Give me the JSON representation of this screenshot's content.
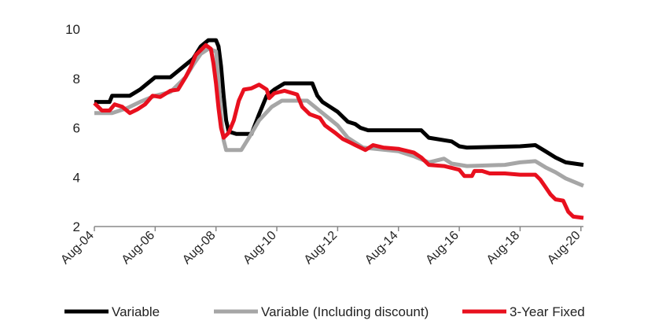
{
  "chart_data": {
    "type": "line",
    "title": "",
    "xlabel": "",
    "ylabel": "",
    "xlim": [
      "2004-08",
      "2020-09"
    ],
    "ylim": [
      2,
      10
    ],
    "grid": false,
    "legend": "bottom",
    "y_ticks": [
      2,
      4,
      6,
      8,
      10
    ],
    "y_tick_labels": [
      "2",
      "4",
      "6",
      "8",
      "10"
    ],
    "x_tick_labels": [
      "Aug-04",
      "Aug-06",
      "Aug-08",
      "Aug-10",
      "Aug-12",
      "Aug-14",
      "Aug-16",
      "Aug-18",
      "Aug-20"
    ],
    "x_tick_dates": [
      "2004-08",
      "2006-08",
      "2008-08",
      "2010-08",
      "2012-08",
      "2014-08",
      "2016-08",
      "2018-08",
      "2020-08"
    ],
    "series": [
      {
        "name": "Variable",
        "color": "#000000",
        "points": [
          [
            "2004-08",
            7.05
          ],
          [
            "2005-02",
            7.05
          ],
          [
            "2005-03",
            7.3
          ],
          [
            "2005-10",
            7.3
          ],
          [
            "2006-02",
            7.55
          ],
          [
            "2006-05",
            7.8
          ],
          [
            "2006-08",
            8.05
          ],
          [
            "2007-02",
            8.05
          ],
          [
            "2007-05",
            8.3
          ],
          [
            "2007-08",
            8.55
          ],
          [
            "2007-11",
            8.8
          ],
          [
            "2008-02",
            9.3
          ],
          [
            "2008-05",
            9.55
          ],
          [
            "2008-08",
            9.55
          ],
          [
            "2008-09",
            9.3
          ],
          [
            "2008-10",
            8.5
          ],
          [
            "2008-11",
            7.3
          ],
          [
            "2008-12",
            6.3
          ],
          [
            "2009-01",
            5.85
          ],
          [
            "2009-04",
            5.75
          ],
          [
            "2009-10",
            5.75
          ],
          [
            "2010-01",
            6.55
          ],
          [
            "2010-04",
            7.3
          ],
          [
            "2010-07",
            7.55
          ],
          [
            "2010-11",
            7.8
          ],
          [
            "2011-10",
            7.8
          ],
          [
            "2011-11",
            7.55
          ],
          [
            "2011-12",
            7.3
          ],
          [
            "2012-02",
            7.05
          ],
          [
            "2012-05",
            6.85
          ],
          [
            "2012-08",
            6.65
          ],
          [
            "2012-10",
            6.45
          ],
          [
            "2012-12",
            6.25
          ],
          [
            "2013-03",
            6.15
          ],
          [
            "2013-05",
            6.0
          ],
          [
            "2013-08",
            5.9
          ],
          [
            "2015-05",
            5.9
          ],
          [
            "2015-08",
            5.6
          ],
          [
            "2016-05",
            5.45
          ],
          [
            "2016-08",
            5.25
          ],
          [
            "2016-11",
            5.2
          ],
          [
            "2018-08",
            5.25
          ],
          [
            "2019-02",
            5.3
          ],
          [
            "2019-06",
            5.05
          ],
          [
            "2019-10",
            4.8
          ],
          [
            "2020-02",
            4.6
          ],
          [
            "2020-09",
            4.5
          ]
        ]
      },
      {
        "name": "Variable (Including discount)",
        "color": "#a6a6a6",
        "points": [
          [
            "2004-08",
            6.6
          ],
          [
            "2005-03",
            6.6
          ],
          [
            "2005-09",
            6.8
          ],
          [
            "2006-02",
            7.05
          ],
          [
            "2006-08",
            7.3
          ],
          [
            "2007-02",
            7.45
          ],
          [
            "2007-08",
            8.05
          ],
          [
            "2007-11",
            8.55
          ],
          [
            "2008-02",
            9.0
          ],
          [
            "2008-05",
            9.2
          ],
          [
            "2008-08",
            9.1
          ],
          [
            "2008-09",
            8.0
          ],
          [
            "2008-10",
            6.5
          ],
          [
            "2008-11",
            5.5
          ],
          [
            "2008-12",
            5.1
          ],
          [
            "2009-06",
            5.1
          ],
          [
            "2009-09",
            5.6
          ],
          [
            "2010-01",
            6.3
          ],
          [
            "2010-06",
            6.85
          ],
          [
            "2010-10",
            7.1
          ],
          [
            "2011-04",
            7.1
          ],
          [
            "2011-08",
            7.1
          ],
          [
            "2011-11",
            6.85
          ],
          [
            "2012-02",
            6.6
          ],
          [
            "2012-05",
            6.35
          ],
          [
            "2012-08",
            6.1
          ],
          [
            "2012-10",
            5.85
          ],
          [
            "2012-12",
            5.6
          ],
          [
            "2013-03",
            5.4
          ],
          [
            "2013-06",
            5.2
          ],
          [
            "2014-08",
            5.05
          ],
          [
            "2015-02",
            4.85
          ],
          [
            "2015-08",
            4.6
          ],
          [
            "2016-02",
            4.75
          ],
          [
            "2016-05",
            4.55
          ],
          [
            "2016-11",
            4.45
          ],
          [
            "2018-02",
            4.5
          ],
          [
            "2018-08",
            4.6
          ],
          [
            "2019-02",
            4.65
          ],
          [
            "2019-06",
            4.4
          ],
          [
            "2019-10",
            4.2
          ],
          [
            "2020-02",
            3.95
          ],
          [
            "2020-09",
            3.65
          ]
        ]
      },
      {
        "name": "3-Year Fixed",
        "color": "#e8101e",
        "points": [
          [
            "2004-08",
            7.0
          ],
          [
            "2004-11",
            6.7
          ],
          [
            "2005-02",
            6.7
          ],
          [
            "2005-04",
            6.95
          ],
          [
            "2005-07",
            6.85
          ],
          [
            "2005-10",
            6.6
          ],
          [
            "2006-01",
            6.75
          ],
          [
            "2006-04",
            6.95
          ],
          [
            "2006-07",
            7.3
          ],
          [
            "2006-10",
            7.25
          ],
          [
            "2007-02",
            7.5
          ],
          [
            "2007-05",
            7.55
          ],
          [
            "2007-08",
            8.05
          ],
          [
            "2007-10",
            8.45
          ],
          [
            "2007-12",
            8.95
          ],
          [
            "2008-02",
            9.15
          ],
          [
            "2008-04",
            9.35
          ],
          [
            "2008-06",
            9.2
          ],
          [
            "2008-07",
            8.6
          ],
          [
            "2008-08",
            7.8
          ],
          [
            "2008-09",
            6.8
          ],
          [
            "2008-10",
            6.0
          ],
          [
            "2008-11",
            5.6
          ],
          [
            "2009-01",
            5.8
          ],
          [
            "2009-03",
            6.3
          ],
          [
            "2009-05",
            7.1
          ],
          [
            "2009-07",
            7.55
          ],
          [
            "2009-10",
            7.6
          ],
          [
            "2010-01",
            7.75
          ],
          [
            "2010-04",
            7.55
          ],
          [
            "2010-05",
            7.2
          ],
          [
            "2010-07",
            7.4
          ],
          [
            "2010-09",
            7.45
          ],
          [
            "2010-11",
            7.5
          ],
          [
            "2011-04",
            7.35
          ],
          [
            "2011-06",
            6.85
          ],
          [
            "2011-09",
            6.55
          ],
          [
            "2012-01",
            6.4
          ],
          [
            "2012-03",
            6.1
          ],
          [
            "2012-05",
            5.95
          ],
          [
            "2012-07",
            5.8
          ],
          [
            "2012-10",
            5.55
          ],
          [
            "2013-01",
            5.4
          ],
          [
            "2013-03",
            5.3
          ],
          [
            "2013-05",
            5.2
          ],
          [
            "2013-07",
            5.1
          ],
          [
            "2013-10",
            5.3
          ],
          [
            "2014-02",
            5.2
          ],
          [
            "2014-08",
            5.15
          ],
          [
            "2015-02",
            5.0
          ],
          [
            "2015-05",
            4.8
          ],
          [
            "2015-08",
            4.5
          ],
          [
            "2016-02",
            4.45
          ],
          [
            "2016-08",
            4.3
          ],
          [
            "2016-10",
            4.05
          ],
          [
            "2017-01",
            4.05
          ],
          [
            "2017-02",
            4.25
          ],
          [
            "2017-05",
            4.25
          ],
          [
            "2017-08",
            4.15
          ],
          [
            "2018-02",
            4.15
          ],
          [
            "2018-08",
            4.1
          ],
          [
            "2019-02",
            4.1
          ],
          [
            "2019-04",
            3.9
          ],
          [
            "2019-06",
            3.6
          ],
          [
            "2019-08",
            3.3
          ],
          [
            "2019-10",
            3.1
          ],
          [
            "2020-01",
            3.05
          ],
          [
            "2020-03",
            2.6
          ],
          [
            "2020-05",
            2.4
          ],
          [
            "2020-09",
            2.35
          ]
        ]
      }
    ]
  }
}
